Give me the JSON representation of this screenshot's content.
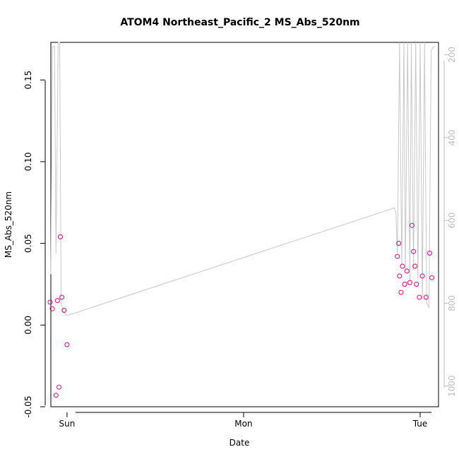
{
  "chart_data": {
    "type": "scatter",
    "title": "ATOM4 Northeast_Pacific_2 MS_Abs_520nm",
    "xlabel": "Date",
    "ylabel": "MS_Abs_520nm",
    "x_ticks": [
      "Sun",
      "Mon",
      "Tue"
    ],
    "y_ticks": [
      "-0.05",
      "0.00",
      "0.05",
      "0.10",
      "0.15"
    ],
    "y2_ticks": [
      "200",
      "400",
      "600",
      "800",
      "1000"
    ],
    "xlim_hours": [
      -2.2,
      50.5
    ],
    "ylim": [
      -0.05,
      0.173
    ],
    "y2lim": [
      1050,
      170
    ],
    "point_color": "#e6007e",
    "line_color": "#c8c8c8",
    "series": [
      {
        "x_hours": [
          -2.3,
          -2.0,
          -1.5,
          -1.3,
          -1.1,
          -0.9,
          -0.7,
          -0.4,
          0.0,
          44.9,
          45.1,
          45.2,
          45.4,
          45.6,
          45.9,
          46.2,
          46.6,
          46.9,
          47.1,
          47.3,
          47.5,
          47.9,
          48.3,
          48.8,
          49.3,
          49.6
        ],
        "y": [
          0.014,
          0.01,
          -0.043,
          0.015,
          -0.038,
          0.054,
          0.017,
          0.009,
          -0.012,
          0.042,
          0.05,
          0.03,
          0.02,
          0.036,
          0.025,
          0.033,
          0.026,
          0.061,
          0.045,
          0.036,
          0.025,
          0.017,
          0.03,
          0.017,
          0.044,
          0.029
        ]
      }
    ],
    "depth_series": {
      "x_hours": [
        -2.2,
        -2.0,
        -1.7,
        -1.5,
        -1.2,
        -1.0,
        -0.8,
        -0.5,
        0.0,
        44.5,
        44.7,
        44.9,
        45.2,
        45.5,
        45.8,
        46.0,
        46.3,
        46.6,
        46.8,
        47.1,
        47.4,
        47.7,
        48.0,
        48.3,
        48.6,
        48.9,
        49.2,
        49.5,
        49.8,
        50.0
      ],
      "depth": [
        730,
        180,
        180,
        680,
        160,
        160,
        800,
        820,
        830,
        570,
        580,
        680,
        160,
        710,
        160,
        720,
        160,
        750,
        160,
        720,
        160,
        740,
        160,
        790,
        160,
        800,
        810,
        190,
        180,
        180
      ]
    }
  }
}
